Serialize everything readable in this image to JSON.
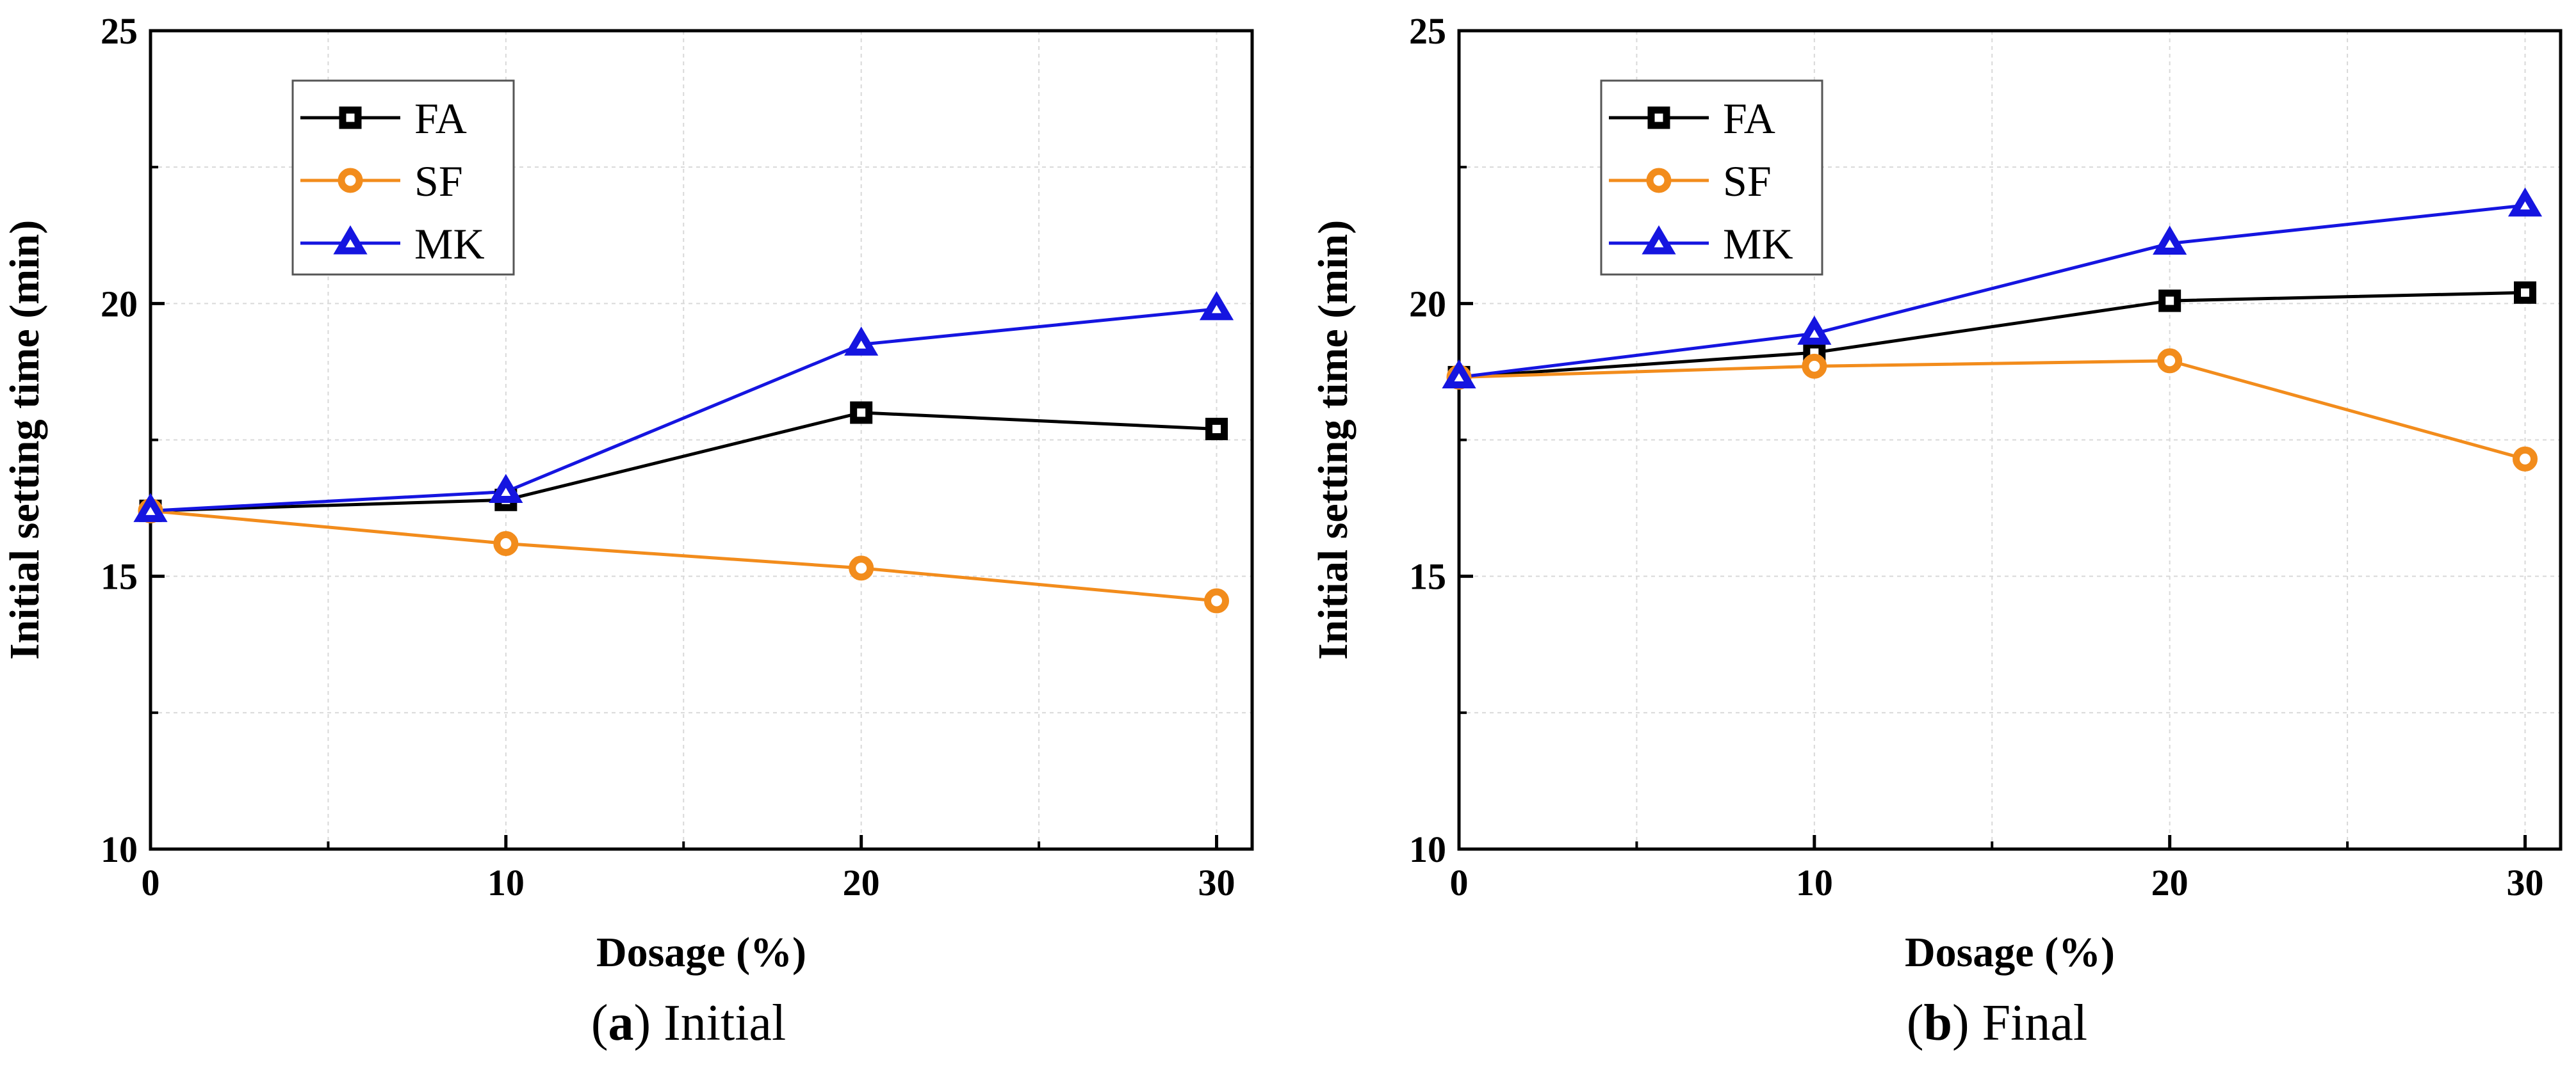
{
  "chart_data": [
    {
      "type": "line",
      "panel_letter": "a",
      "caption_text": "Initial",
      "xlabel": "Dosage (%)",
      "ylabel": "Initial setting time (min)",
      "x": [
        0,
        10,
        20,
        30
      ],
      "xlim": [
        0,
        31
      ],
      "ylim": [
        10,
        25
      ],
      "x_ticks": [
        0,
        10,
        20,
        30
      ],
      "y_ticks": [
        10,
        15,
        20,
        25
      ],
      "grid": true,
      "legend_position": "top-left",
      "series": [
        {
          "name": "FA",
          "values": [
            16.2,
            16.4,
            18.0,
            17.7
          ],
          "color": "#000000",
          "marker": "square"
        },
        {
          "name": "SF",
          "values": [
            16.2,
            15.6,
            15.15,
            14.55
          ],
          "color": "#f28c1c",
          "marker": "circle"
        },
        {
          "name": "MK",
          "values": [
            16.2,
            16.55,
            19.25,
            19.9
          ],
          "color": "#1515e0",
          "marker": "triangle"
        }
      ]
    },
    {
      "type": "line",
      "panel_letter": "b",
      "caption_text": "Final",
      "xlabel": "Dosage (%)",
      "ylabel": "Initial setting time (min)",
      "x": [
        0,
        10,
        20,
        30
      ],
      "xlim": [
        0,
        31
      ],
      "ylim": [
        10,
        25
      ],
      "x_ticks": [
        0,
        10,
        20,
        30
      ],
      "y_ticks": [
        10,
        15,
        20,
        25
      ],
      "grid": true,
      "legend_position": "top-left",
      "series": [
        {
          "name": "FA",
          "values": [
            18.65,
            19.1,
            20.05,
            20.2
          ],
          "color": "#000000",
          "marker": "square"
        },
        {
          "name": "SF",
          "values": [
            18.65,
            18.85,
            18.95,
            17.15
          ],
          "color": "#f28c1c",
          "marker": "circle"
        },
        {
          "name": "MK",
          "values": [
            18.65,
            19.45,
            21.1,
            21.8
          ],
          "color": "#1515e0",
          "marker": "triangle"
        }
      ]
    }
  ]
}
